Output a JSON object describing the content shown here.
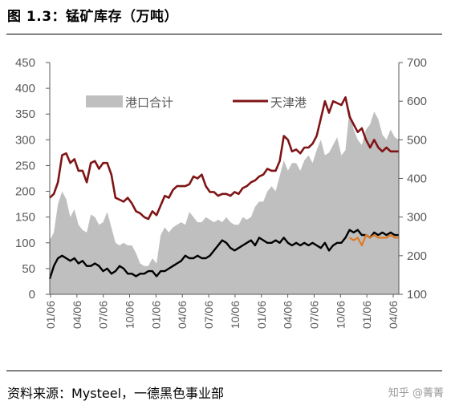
{
  "header": {
    "title": "图 1.3：锰矿库存（万吨）"
  },
  "footer": {
    "source": "资料来源：Mysteel，一德黑色事业部",
    "watermark": "知乎 @菁菁"
  },
  "chart_data": {
    "type": "area+line",
    "x_ticks": [
      "01/06",
      "04/06",
      "07/06",
      "10/06",
      "01/06",
      "04/06",
      "07/06",
      "10/06",
      "01/06",
      "04/06",
      "07/06",
      "10/06",
      "01/06",
      "04/06"
    ],
    "y_left": {
      "ylim": [
        0,
        450
      ],
      "ticks": [
        0,
        50,
        100,
        150,
        200,
        250,
        300,
        350,
        400,
        450
      ]
    },
    "y_right": {
      "ylim": [
        100,
        700
      ],
      "ticks": [
        100,
        200,
        300,
        400,
        500,
        600,
        700
      ]
    },
    "legend": {
      "position": "top-left"
    },
    "colors": {
      "area": "#bfbfbf",
      "tianjin": "#7f1416",
      "black": "#000000",
      "orange": "#e07a22"
    },
    "series": [
      {
        "name": "港口合计",
        "kind": "area",
        "axis": "left",
        "t": [
          0,
          2,
          4,
          6,
          8,
          10,
          12,
          14,
          16,
          18,
          20,
          22,
          24,
          26,
          28,
          30,
          32,
          34,
          36,
          38,
          40,
          42,
          44,
          46,
          48,
          50,
          52,
          54,
          56,
          58,
          60,
          62,
          64,
          66,
          68,
          70,
          72,
          74,
          76,
          78,
          80,
          82,
          84,
          86,
          88,
          90,
          92,
          94,
          96,
          98,
          100,
          102,
          104,
          106,
          108,
          110,
          112,
          114,
          116,
          118,
          120,
          122,
          124,
          126,
          128,
          130,
          132,
          134,
          136,
          138,
          140,
          142,
          144,
          146,
          148,
          150,
          152,
          154,
          156,
          158,
          160,
          162,
          164,
          166,
          168,
          170
        ],
        "values": [
          105,
          120,
          175,
          200,
          185,
          150,
          165,
          135,
          125,
          120,
          155,
          150,
          135,
          140,
          160,
          130,
          100,
          95,
          100,
          95,
          95,
          80,
          60,
          55,
          55,
          70,
          60,
          115,
          130,
          120,
          130,
          135,
          140,
          135,
          160,
          150,
          140,
          140,
          150,
          145,
          140,
          145,
          140,
          150,
          140,
          135,
          135,
          150,
          145,
          150,
          170,
          180,
          180,
          200,
          210,
          200,
          230,
          260,
          240,
          255,
          255,
          240,
          260,
          270,
          255,
          280,
          300,
          270,
          275,
          290,
          305,
          270,
          280,
          360,
          320,
          300,
          290,
          320,
          330,
          355,
          340,
          310,
          300,
          320,
          305,
          300
        ]
      },
      {
        "name": "天津港",
        "kind": "line",
        "axis": "right",
        "t": [
          0,
          2,
          4,
          6,
          8,
          10,
          12,
          14,
          16,
          18,
          20,
          22,
          24,
          26,
          28,
          30,
          32,
          34,
          36,
          38,
          40,
          42,
          44,
          46,
          48,
          50,
          52,
          54,
          56,
          58,
          60,
          62,
          64,
          66,
          68,
          70,
          72,
          74,
          76,
          78,
          80,
          82,
          84,
          86,
          88,
          90,
          92,
          94,
          96,
          98,
          100,
          102,
          104,
          106,
          108,
          110,
          112,
          114,
          116,
          118,
          120,
          122,
          124,
          126,
          128,
          130,
          132,
          134,
          136,
          138,
          140,
          142,
          144,
          146,
          148,
          150,
          152,
          154,
          156,
          158,
          160,
          162,
          164,
          166,
          168,
          170
        ],
        "values": [
          350,
          360,
          390,
          460,
          465,
          440,
          450,
          420,
          420,
          390,
          440,
          445,
          425,
          440,
          440,
          410,
          350,
          345,
          340,
          350,
          335,
          315,
          310,
          300,
          295,
          315,
          305,
          330,
          355,
          350,
          370,
          380,
          380,
          380,
          385,
          405,
          400,
          410,
          380,
          365,
          365,
          355,
          360,
          360,
          355,
          365,
          360,
          375,
          380,
          390,
          395,
          405,
          410,
          425,
          420,
          420,
          445,
          510,
          500,
          470,
          475,
          465,
          480,
          480,
          490,
          510,
          555,
          600,
          570,
          600,
          595,
          590,
          610,
          560,
          540,
          520,
          530,
          500,
          480,
          500,
          480,
          470,
          480,
          470,
          470,
          470
        ]
      },
      {
        "name": "",
        "kind": "line",
        "axis": "left",
        "t": [
          0,
          2,
          4,
          6,
          8,
          10,
          12,
          14,
          16,
          18,
          20,
          22,
          24,
          26,
          28,
          30,
          32,
          34,
          36,
          38,
          40,
          42,
          44,
          46,
          48,
          50,
          52,
          54,
          56,
          58,
          60,
          62,
          64,
          66,
          68,
          70,
          72,
          74,
          76,
          78,
          80,
          82,
          84,
          86,
          88,
          90,
          92,
          94,
          96,
          98,
          100,
          102,
          104,
          106,
          108,
          110,
          112,
          114,
          116,
          118,
          120,
          122,
          124,
          126,
          128,
          130,
          132,
          134,
          136,
          138,
          140,
          142,
          144,
          146,
          148,
          150,
          152,
          154,
          156,
          158,
          160,
          162,
          164,
          166,
          168,
          170
        ],
        "values": [
          30,
          55,
          70,
          75,
          70,
          65,
          70,
          60,
          65,
          55,
          55,
          60,
          55,
          45,
          50,
          40,
          45,
          55,
          50,
          40,
          40,
          35,
          40,
          40,
          45,
          45,
          35,
          45,
          45,
          50,
          55,
          60,
          65,
          75,
          70,
          70,
          75,
          70,
          70,
          75,
          85,
          95,
          105,
          100,
          90,
          85,
          90,
          95,
          100,
          105,
          95,
          110,
          105,
          100,
          100,
          105,
          100,
          110,
          100,
          95,
          100,
          95,
          100,
          95,
          100,
          95,
          90,
          100,
          85,
          95,
          100,
          100,
          110,
          125,
          120,
          125,
          115,
          115,
          110,
          120,
          115,
          120,
          115,
          120,
          115,
          115
        ]
      },
      {
        "name": "",
        "kind": "line",
        "axis": "left",
        "t": [
          146,
          148,
          150,
          152,
          154,
          156,
          158,
          160,
          162,
          164,
          166,
          168,
          170
        ],
        "values": [
          110,
          105,
          110,
          95,
          115,
          110,
          115,
          110,
          110,
          110,
          115,
          110,
          110
        ]
      }
    ]
  }
}
